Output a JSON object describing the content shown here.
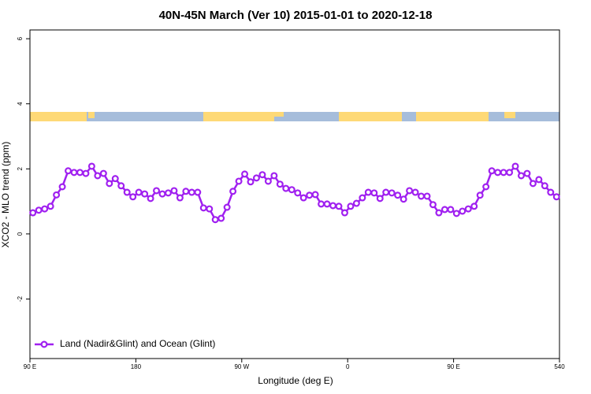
{
  "chart_data": {
    "type": "line",
    "title": "40N-45N March (Ver 10)   2015-01-01 to 2020-12-18",
    "xlabel": "Longitude (deg E)",
    "ylabel": "XCO2 - MLO trend (ppm)",
    "xlim": [
      90,
      540
    ],
    "ylim": [
      -3.83,
      6.27
    ],
    "xticks": [
      {
        "value": 90,
        "label": "90 E"
      },
      180,
      {
        "value": 270,
        "label": "90 W"
      },
      {
        "value": 360,
        "label": "0"
      },
      {
        "value": 450,
        "label": "90 E"
      },
      540
    ],
    "yticks": [
      -2,
      0,
      2,
      4,
      6
    ],
    "legend": "bottomleft",
    "x": [
      92.5,
      97.5,
      102.5,
      107.5,
      112.5,
      117.5,
      122.5,
      127.5,
      132.5,
      137.5,
      142.5,
      147.5,
      152.5,
      157.5,
      162.5,
      167.5,
      172.5,
      177.5,
      182.5,
      187.5,
      192.5,
      197.5,
      202.5,
      207.5,
      212.5,
      217.5,
      222.5,
      227.5,
      232.5,
      237.5,
      242.5,
      247.5,
      252.5,
      257.5,
      262.5,
      267.5,
      272.5,
      277.5,
      282.5,
      287.5,
      292.5,
      297.5,
      302.5,
      307.5,
      312.5,
      317.5,
      322.5,
      327.5,
      332.5,
      337.5,
      342.5,
      347.5,
      352.5,
      357.5,
      362.5,
      367.5,
      372.5,
      377.5,
      382.5,
      387.5,
      392.5,
      397.5,
      402.5,
      407.5,
      412.5,
      417.5,
      422.5,
      427.5,
      432.5,
      437.5,
      442.5,
      447.5,
      452.5,
      457.5,
      462.5,
      467.5,
      472.5,
      477.5,
      482.5,
      487.5,
      492.5,
      497.5,
      502.5,
      507.5,
      512.5,
      517.5,
      522.5,
      527.5,
      532.5,
      537.5
    ],
    "series": [
      {
        "name": "Land (Nadir&Glint) and Ocean (Glint)",
        "color": "#a020f0",
        "values": [
          0.65,
          0.73,
          0.77,
          0.85,
          1.2,
          1.45,
          1.94,
          1.89,
          1.89,
          1.86,
          2.08,
          1.79,
          1.86,
          1.55,
          1.7,
          1.48,
          1.28,
          1.14,
          1.28,
          1.23,
          1.09,
          1.33,
          1.23,
          1.26,
          1.33,
          1.11,
          1.31,
          1.28,
          1.28,
          0.8,
          0.77,
          0.44,
          0.48,
          0.82,
          1.31,
          1.62,
          1.84,
          1.6,
          1.72,
          1.82,
          1.62,
          1.79,
          1.53,
          1.4,
          1.36,
          1.26,
          1.11,
          1.19,
          1.21,
          0.92,
          0.92,
          0.87,
          0.85,
          0.65,
          0.85,
          0.94,
          1.11,
          1.28,
          1.26,
          1.09,
          1.28,
          1.26,
          1.19,
          1.07,
          1.33,
          1.28,
          1.16,
          1.16,
          0.9,
          0.65,
          0.75,
          0.75,
          0.63,
          0.7,
          0.77,
          0.85,
          1.19,
          1.45,
          1.94,
          1.89,
          1.89,
          1.89,
          2.08,
          1.79,
          1.86,
          1.55,
          1.67,
          1.48,
          1.28,
          1.14
        ]
      }
    ]
  }
}
